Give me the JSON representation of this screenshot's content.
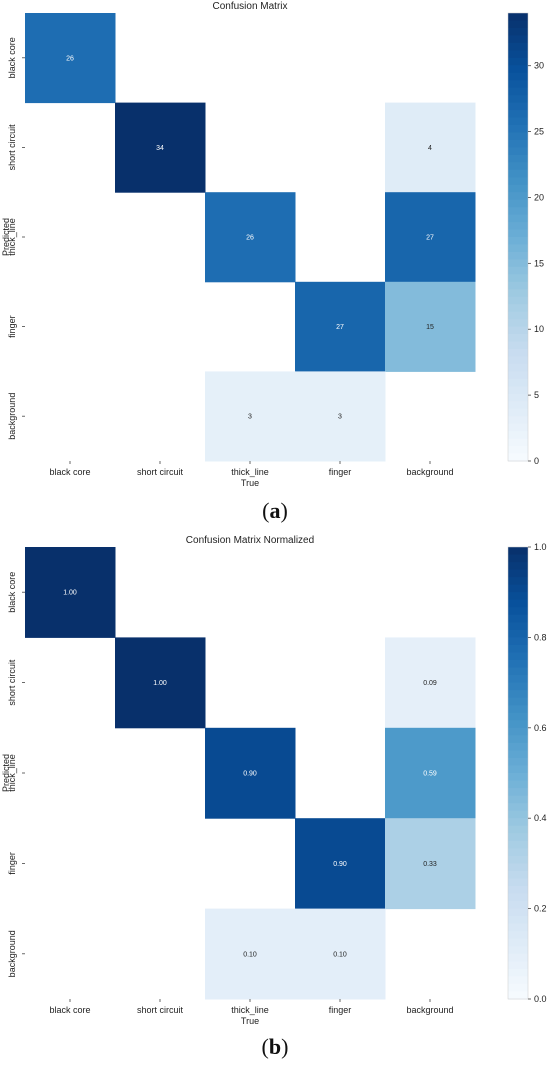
{
  "chart_data": [
    {
      "type": "heatmap",
      "title": "Confusion Matrix",
      "xlabel": "True",
      "ylabel": "Predicted",
      "x_categories": [
        "black core",
        "short circuit",
        "thick_line",
        "finger",
        "background"
      ],
      "y_categories": [
        "black core",
        "short circuit",
        "thick_line",
        "finger",
        "background"
      ],
      "values": [
        [
          26,
          null,
          null,
          null,
          null
        ],
        [
          null,
          34,
          null,
          null,
          4
        ],
        [
          null,
          null,
          26,
          null,
          27
        ],
        [
          null,
          null,
          null,
          27,
          15
        ],
        [
          null,
          null,
          3,
          3,
          null
        ]
      ],
      "cell_labels": [
        [
          "26",
          "",
          "",
          "",
          ""
        ],
        [
          "",
          "34",
          "",
          "",
          "4"
        ],
        [
          "",
          "",
          "26",
          "",
          "27"
        ],
        [
          "",
          "",
          "",
          "27",
          "15"
        ],
        [
          "",
          "",
          "3",
          "3",
          ""
        ]
      ],
      "colorbar": {
        "range": [
          0,
          34
        ],
        "ticks": [
          "0",
          "5",
          "10",
          "15",
          "20",
          "25",
          "30"
        ],
        "tick_values": [
          0,
          5,
          10,
          15,
          20,
          25,
          30
        ]
      },
      "colormap": "Blues",
      "caption": "a"
    },
    {
      "type": "heatmap",
      "title": "Confusion Matrix Normalized",
      "xlabel": "True",
      "ylabel": "Predicted",
      "x_categories": [
        "black core",
        "short circuit",
        "thick_line",
        "finger",
        "background"
      ],
      "y_categories": [
        "black core",
        "short circuit",
        "thick_line",
        "finger",
        "background"
      ],
      "values": [
        [
          1.0,
          null,
          null,
          null,
          null
        ],
        [
          null,
          1.0,
          null,
          null,
          0.09
        ],
        [
          null,
          null,
          0.9,
          null,
          0.59
        ],
        [
          null,
          null,
          null,
          0.9,
          0.33
        ],
        [
          null,
          null,
          0.1,
          0.1,
          null
        ]
      ],
      "cell_labels": [
        [
          "1.00",
          "",
          "",
          "",
          ""
        ],
        [
          "",
          "1.00",
          "",
          "",
          "0.09"
        ],
        [
          "",
          "",
          "0.90",
          "",
          "0.59"
        ],
        [
          "",
          "",
          "",
          "0.90",
          "0.33"
        ],
        [
          "",
          "",
          "0.10",
          "0.10",
          ""
        ]
      ],
      "colorbar": {
        "range": [
          0,
          1
        ],
        "ticks": [
          "0.0",
          "0.2",
          "0.4",
          "0.6",
          "0.8",
          "1.0"
        ],
        "tick_values": [
          0,
          0.2,
          0.4,
          0.6,
          0.8,
          1.0
        ]
      },
      "colormap": "Blues",
      "caption": "b"
    }
  ]
}
